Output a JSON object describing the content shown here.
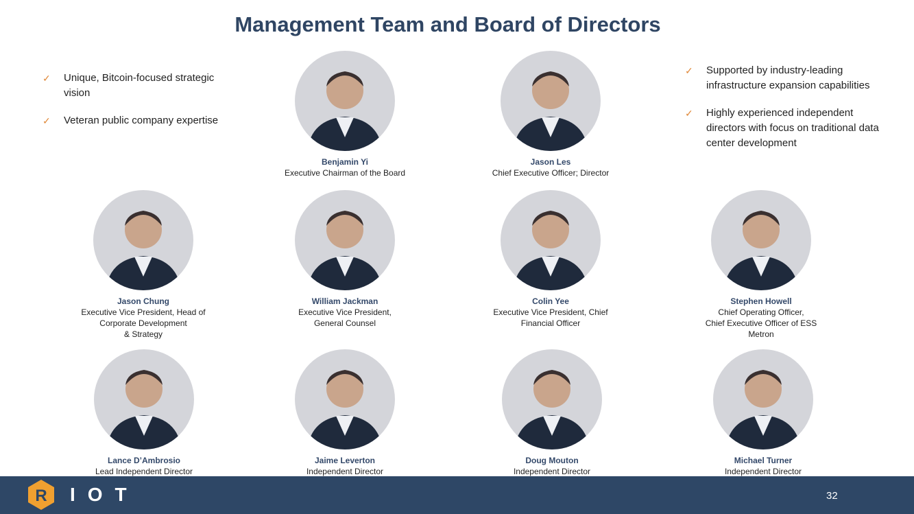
{
  "title": "Management Team and Board of Directors",
  "left_bullets": [
    "Unique, Bitcoin-focused strategic vision",
    "Veteran public company expertise"
  ],
  "right_bullets": [
    "Supported by industry-leading infrastructure expansion capabilities",
    "Highly experienced independent directors with focus on traditional data center development"
  ],
  "people": [
    {
      "name": "Benjamin Yi",
      "role": "Executive Chairman of the Board"
    },
    {
      "name": "Jason Les",
      "role": "Chief Executive Officer; Director"
    },
    {
      "name": "Jason Chung",
      "role": "Executive Vice President, Head of\nCorporate Development\n& Strategy"
    },
    {
      "name": "William Jackman",
      "role": "Executive Vice President,\nGeneral Counsel"
    },
    {
      "name": "Colin Yee",
      "role": "Executive Vice President, Chief\nFinancial Officer"
    },
    {
      "name": "Stephen Howell",
      "role": "Chief Operating Officer,\nChief Executive Officer of ESS\nMetron"
    },
    {
      "name": "Lance D’Ambrosio",
      "role": "Lead Independent Director"
    },
    {
      "name": "Jaime Leverton",
      "role": "Independent Director"
    },
    {
      "name": "Doug Mouton",
      "role": "Independent Director"
    },
    {
      "name": "Michael Turner",
      "role": "Independent Director"
    }
  ],
  "footer": {
    "logo_text": "RIOT",
    "page_number": "32"
  },
  "colors": {
    "title": "#2f4563",
    "footer": "#2e4766",
    "check": "#e0893a",
    "logo": "#f0a030"
  }
}
